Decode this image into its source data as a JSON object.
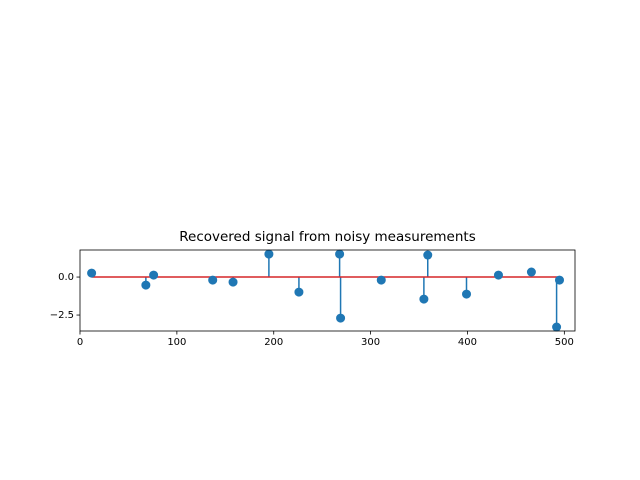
{
  "chart_data": {
    "type": "stem",
    "title": "Recovered signal from noisy measurements",
    "x": [
      12,
      68,
      76,
      137,
      158,
      195,
      226,
      268,
      269,
      311,
      355,
      359,
      399,
      432,
      466,
      492,
      495
    ],
    "values": [
      0.26,
      -0.53,
      0.13,
      -0.2,
      -0.33,
      1.51,
      -0.99,
      1.51,
      -2.7,
      -0.2,
      -1.45,
      1.45,
      -1.12,
      0.13,
      0.33,
      -3.29,
      -0.2
    ],
    "color": "#1f77b4",
    "baseline": 0,
    "baseline_color": "#d62728",
    "xlim": [
      0,
      511
    ],
    "ylim": [
      -3.55,
      1.78
    ],
    "xticks": [
      0,
      100,
      200,
      300,
      400,
      500
    ],
    "yticks": [
      {
        "value": 0,
        "label": "0.0"
      },
      {
        "value": -2.5,
        "label": "−2.5"
      }
    ]
  }
}
